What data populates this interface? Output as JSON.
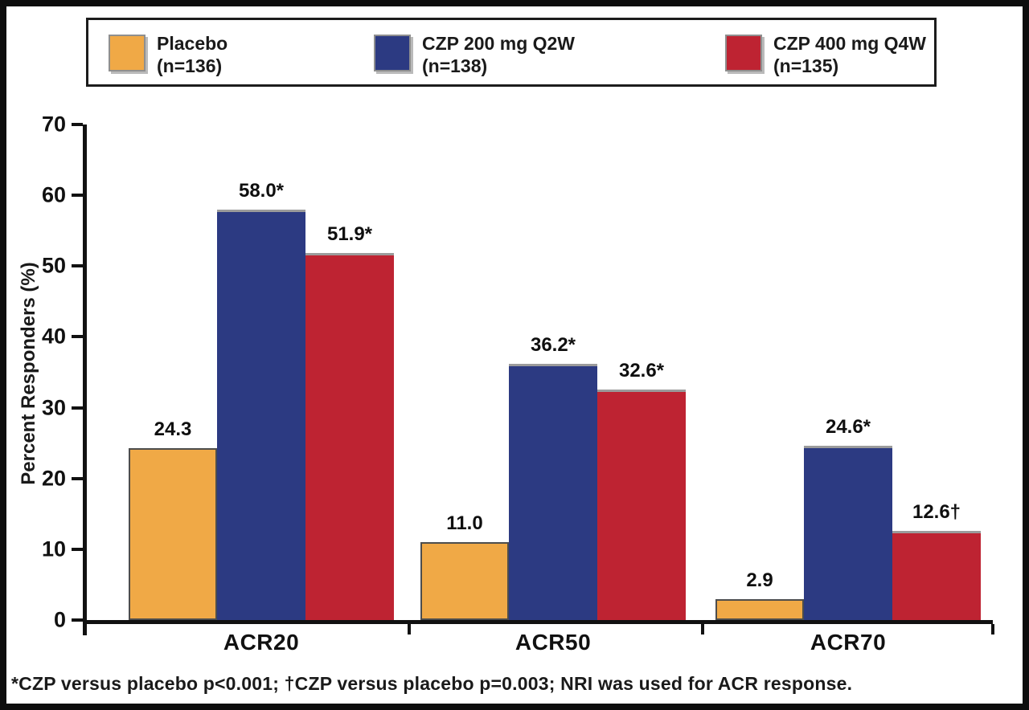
{
  "chart_data": {
    "type": "bar",
    "y_axis_title": "Percent Responders (%)",
    "ylim": [
      0,
      70
    ],
    "y_ticks": [
      0,
      10,
      20,
      30,
      40,
      50,
      60,
      70
    ],
    "categories": [
      "ACR20",
      "ACR50",
      "ACR70"
    ],
    "series": [
      {
        "name": "Placebo",
        "n_label": "(n=136)",
        "color": "#F0A946",
        "values": [
          24.3,
          11.0,
          2.9
        ],
        "bar_labels": [
          "24.3",
          "11.0",
          "2.9"
        ]
      },
      {
        "name": "CZP 200 mg Q2W",
        "n_label": "(n=138)",
        "color": "#2C3A82",
        "values": [
          58.0,
          36.2,
          24.6
        ],
        "bar_labels": [
          "58.0*",
          "36.2*",
          "24.6*"
        ]
      },
      {
        "name": "CZP 400 mg Q4W",
        "n_label": "(n=135)",
        "color": "#BE2332",
        "values": [
          51.9,
          32.6,
          12.6
        ],
        "bar_labels": [
          "51.9*",
          "32.6*",
          "12.6†"
        ]
      }
    ],
    "footnote": "*CZP versus placebo p<0.001; †CZP versus placebo p=0.003; NRI was used for ACR response.",
    "legend_position": "top",
    "grid": false
  }
}
